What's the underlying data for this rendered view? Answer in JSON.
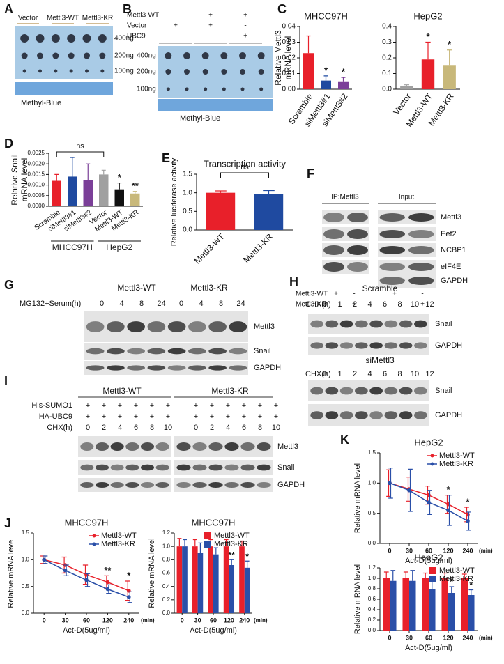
{
  "panel_letters": [
    "A",
    "B",
    "C",
    "D",
    "E",
    "F",
    "G",
    "H",
    "I",
    "J",
    "K"
  ],
  "blot_A": {
    "groups": [
      "Vector",
      "Mettl3-WT",
      "Mettl3-KR"
    ],
    "amounts": [
      "400ng",
      "200ng",
      "100ng"
    ],
    "stain": "Methyl-Blue"
  },
  "blot_B": {
    "rows": [
      {
        "label": "Mettl3-WT",
        "signs": [
          "-",
          "+",
          "+"
        ]
      },
      {
        "label": "Vector",
        "signs": [
          "+",
          "+",
          "-"
        ]
      },
      {
        "label": "UBC9",
        "signs": [
          "-",
          "-",
          "+"
        ]
      }
    ],
    "amounts": [
      "400ng",
      "200ng",
      "100ng"
    ],
    "stain": "Methyl-Blue"
  },
  "blot_F": {
    "headers": [
      "IP:Mettl3",
      "Input"
    ],
    "bands": [
      "Mettl3",
      "Eef2",
      "NCBP1",
      "eIF4E",
      "GAPDH"
    ],
    "rows": [
      {
        "label": "Mettl3-WT",
        "signs": [
          "+",
          "-",
          "+",
          "-"
        ]
      },
      {
        "label": "Mettl3-KR",
        "signs": [
          "-",
          "+",
          "-",
          "+"
        ]
      }
    ]
  },
  "blot_G": {
    "groups": [
      "Mettl3-WT",
      "Mettl3-KR"
    ],
    "condition": "MG132+Serum(h)",
    "times": [
      0,
      4,
      8,
      24,
      0,
      4,
      8,
      24
    ],
    "bands": [
      "Mettl3",
      "Snail",
      "GAPDH"
    ]
  },
  "blot_H": {
    "blocks": [
      {
        "title": "Scramble",
        "condition": "CHX(h)",
        "times": [
          0,
          1,
          2,
          4,
          6,
          8,
          10,
          12
        ],
        "bands": [
          "Snail",
          "GAPDH"
        ]
      },
      {
        "title": "siMettl3",
        "condition": "CHX(h)",
        "times": [
          0,
          1,
          2,
          4,
          6,
          8,
          10,
          12
        ],
        "bands": [
          "Snail",
          "GAPDH"
        ]
      }
    ]
  },
  "blot_I": {
    "groups": [
      "Mettl3-WT",
      "Mettl3-KR"
    ],
    "rows": [
      {
        "label": "His-SUMO1",
        "signs": [
          "+",
          "+",
          "+",
          "+",
          "+",
          "+",
          "+",
          "+",
          "+",
          "+",
          "+",
          "+"
        ]
      },
      {
        "label": "HA-UBC9",
        "signs": [
          "+",
          "+",
          "+",
          "+",
          "+",
          "+",
          "+",
          "+",
          "+",
          "+",
          "+",
          "+"
        ]
      },
      {
        "label": "CHX(h)",
        "signs": [
          0,
          2,
          4,
          6,
          8,
          10,
          0,
          2,
          4,
          6,
          8,
          10
        ]
      }
    ],
    "bands": [
      "Mettl3",
      "Snail",
      "GAPDH"
    ]
  },
  "chart_data": [
    {
      "type": "bar",
      "title": "MHCC97H",
      "ylabel": [
        "Relative Mettl3",
        "mRNA level"
      ],
      "categories": [
        "Scramble",
        "siMettl3#1",
        "siMettl3#2"
      ],
      "values": [
        0.023,
        0.0055,
        0.005
      ],
      "errors": [
        0.011,
        0.003,
        0.0025
      ],
      "colors": [
        "#e8202a",
        "#1f4aa0",
        "#7b3f98"
      ],
      "ylim": [
        0,
        0.04
      ],
      "yticks": [
        {
          "value": 0,
          "label": "0.00"
        },
        {
          "value": 0.01,
          "label": "0.01"
        },
        {
          "value": 0.02,
          "label": "0.02"
        },
        {
          "value": 0.03,
          "label": "0.03"
        },
        {
          "value": 0.04,
          "label": "0.04"
        }
      ],
      "significance": [
        null,
        "*",
        "*"
      ]
    },
    {
      "type": "bar",
      "title": "HepG2",
      "categories": [
        "Vector",
        "Mettl3-WT",
        "Mettl3-KR"
      ],
      "values": [
        0.02,
        0.19,
        0.15
      ],
      "errors": [
        0.008,
        0.11,
        0.1
      ],
      "colors": [
        "#a0a0a0",
        "#e8202a",
        "#c8b87a"
      ],
      "ylim": [
        0,
        0.4
      ],
      "yticks": [
        {
          "value": 0,
          "label": "0.0"
        },
        {
          "value": 0.1,
          "label": "0.1"
        },
        {
          "value": 0.2,
          "label": "0.2"
        },
        {
          "value": 0.3,
          "label": "0.3"
        },
        {
          "value": 0.4,
          "label": "0.4"
        }
      ],
      "significance": [
        null,
        "*",
        "*"
      ]
    },
    {
      "type": "bar",
      "ylabel": [
        "Relative Snail",
        "mRNA level"
      ],
      "categories": [
        "Scramble",
        "siMettl3#1",
        "siMettl3#2",
        "Vector",
        "Mettl3-WT",
        "Mettl3-KR"
      ],
      "values": [
        0.0012,
        0.0014,
        0.00125,
        0.0015,
        0.0008,
        0.0006
      ],
      "errors": [
        0.0003,
        0.0009,
        0.00075,
        0.0002,
        0.0003,
        0.0001
      ],
      "colors": [
        "#e8202a",
        "#1f4aa0",
        "#7b3f98",
        "#a0a0a0",
        "#111111",
        "#c8b87a"
      ],
      "ylim": [
        0,
        0.0025
      ],
      "yticks": [
        {
          "value": 0,
          "label": "0.0000"
        },
        {
          "value": 0.0005,
          "label": "0.0005"
        },
        {
          "value": 0.001,
          "label": "0.0010"
        },
        {
          "value": 0.0015,
          "label": "0.0015"
        },
        {
          "value": 0.002,
          "label": "0.0020"
        },
        {
          "value": 0.0025,
          "label": "0.0025"
        }
      ],
      "significance": [
        null,
        null,
        null,
        null,
        "*",
        "**"
      ],
      "comparison_label": "ns",
      "groups": [
        "MHCC97H",
        "HepG2"
      ]
    },
    {
      "type": "bar",
      "title": "Transcription activity",
      "ylabel": "Relative luciferase activity",
      "categories": [
        "Mettl3-WT",
        "Mettl3-KR"
      ],
      "values": [
        1.0,
        0.97
      ],
      "errors": [
        0.05,
        0.09
      ],
      "colors": [
        "#e8202a",
        "#1f4aa0"
      ],
      "ylim": [
        0,
        1.5
      ],
      "yticks": [
        {
          "value": 0,
          "label": "0.0"
        },
        {
          "value": 0.5,
          "label": "0.5"
        },
        {
          "value": 1,
          "label": "1.0"
        },
        {
          "value": 1.5,
          "label": "1.5"
        }
      ],
      "comparison_label": "ns"
    },
    {
      "type": "line",
      "title": "MHCC97H",
      "ylabel": "Relative mRNA level",
      "xlabel": "Act-D(5ug/ml)",
      "x_unit": "(min)",
      "categories": [
        0,
        30,
        60,
        120,
        240
      ],
      "series": [
        {
          "name": "Mettl3-WT",
          "color": "#e8202a",
          "values": [
            1.0,
            0.9,
            0.72,
            0.58,
            0.42
          ],
          "errors": [
            0.07,
            0.15,
            0.18,
            0.12,
            0.18
          ]
        },
        {
          "name": "Mettl3-KR",
          "color": "#2a4fa8",
          "values": [
            1.0,
            0.8,
            0.62,
            0.45,
            0.3
          ],
          "errors": [
            0.07,
            0.1,
            0.12,
            0.08,
            0.1
          ]
        }
      ],
      "ylim": [
        0,
        1.5
      ],
      "yticks": [
        {
          "value": 0,
          "label": "0.0"
        },
        {
          "value": 0.5,
          "label": "0.5"
        },
        {
          "value": 1,
          "label": "1.0"
        },
        {
          "value": 1.5,
          "label": "1.5"
        }
      ],
      "significance": [
        null,
        null,
        null,
        "**",
        "*"
      ],
      "legend": "upper right"
    },
    {
      "type": "bar",
      "title": "MHCC97H",
      "ylabel": "Relative mRNA level",
      "xlabel": "Act-D(5ug/ml)",
      "x_unit": "(min)",
      "categories": [
        0,
        30,
        60,
        120,
        240
      ],
      "series": [
        {
          "name": "Mettl3-WT",
          "color": "#e8202a",
          "values": [
            1.0,
            1.0,
            1.0,
            1.0,
            1.0
          ],
          "errors": [
            0.12,
            0.1,
            0.1,
            0.1,
            0.08
          ]
        },
        {
          "name": "Mettl3-KR",
          "color": "#2a4fa8",
          "values": [
            1.0,
            0.9,
            0.88,
            0.72,
            0.68
          ],
          "errors": [
            0.1,
            0.15,
            0.1,
            0.08,
            0.1
          ]
        }
      ],
      "ylim": [
        0,
        1.2
      ],
      "yticks": [
        {
          "value": 0,
          "label": "0.0"
        },
        {
          "value": 0.2,
          "label": "0.2"
        },
        {
          "value": 0.4,
          "label": "0.4"
        },
        {
          "value": 0.6,
          "label": "0.6"
        },
        {
          "value": 0.8,
          "label": "0.8"
        },
        {
          "value": 1,
          "label": "1.0"
        },
        {
          "value": 1.2,
          "label": "1.2"
        }
      ],
      "significance": [
        null,
        null,
        null,
        "**",
        "*"
      ],
      "legend": "upper right"
    },
    {
      "type": "line",
      "title": "HepG2",
      "ylabel": "Relative mRNA level",
      "xlabel": "Act-D(5ug/ml)",
      "x_unit": "(min)",
      "categories": [
        0,
        30,
        60,
        120,
        240
      ],
      "series": [
        {
          "name": "Mettl3-WT",
          "color": "#e8202a",
          "values": [
            1.0,
            0.9,
            0.8,
            0.65,
            0.48
          ],
          "errors": [
            0.22,
            0.2,
            0.15,
            0.15,
            0.12
          ]
        },
        {
          "name": "Mettl3-KR",
          "color": "#2a4fa8",
          "values": [
            1.0,
            0.88,
            0.68,
            0.55,
            0.37
          ],
          "errors": [
            0.25,
            0.35,
            0.2,
            0.25,
            0.15
          ]
        }
      ],
      "ylim": [
        0,
        1.5
      ],
      "yticks": [
        {
          "value": 0,
          "label": "0.0"
        },
        {
          "value": 0.5,
          "label": "0.5"
        },
        {
          "value": 1,
          "label": "1.0"
        },
        {
          "value": 1.5,
          "label": "1.5"
        }
      ],
      "significance": [
        null,
        null,
        null,
        "*",
        "*"
      ],
      "legend": "upper right"
    },
    {
      "type": "bar",
      "title": "HepG2",
      "ylabel": "Relative mRNA level",
      "xlabel": "Act-D(5ug/ml)",
      "x_unit": "(min)",
      "categories": [
        0,
        30,
        60,
        120,
        240
      ],
      "series": [
        {
          "name": "Mettl3-WT",
          "color": "#e8202a",
          "values": [
            1.0,
            1.0,
            1.0,
            1.0,
            1.0
          ],
          "errors": [
            0.12,
            0.12,
            0.1,
            0.1,
            0.08
          ]
        },
        {
          "name": "Mettl3-KR",
          "color": "#2a4fa8",
          "values": [
            0.95,
            0.95,
            0.8,
            0.72,
            0.68
          ],
          "errors": [
            0.2,
            0.2,
            0.15,
            0.12,
            0.1
          ]
        }
      ],
      "ylim": [
        0,
        1.2
      ],
      "yticks": [
        {
          "value": 0,
          "label": "0.0"
        },
        {
          "value": 0.2,
          "label": "0.2"
        },
        {
          "value": 0.4,
          "label": "0.4"
        },
        {
          "value": 0.6,
          "label": "0.6"
        },
        {
          "value": 0.8,
          "label": "0.8"
        },
        {
          "value": 1,
          "label": "1.0"
        },
        {
          "value": 1.2,
          "label": "1.2"
        }
      ],
      "significance": [
        null,
        null,
        null,
        "*",
        "*"
      ],
      "legend": "upper right"
    }
  ]
}
